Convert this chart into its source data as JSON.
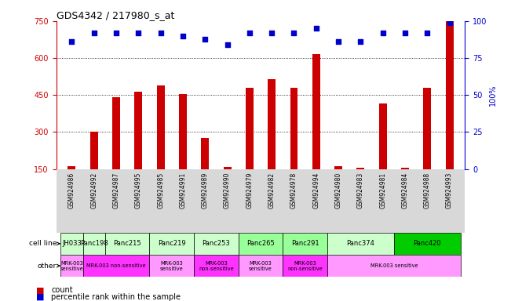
{
  "title": "GDS4342 / 217980_s_at",
  "samples": [
    "GSM924986",
    "GSM924992",
    "GSM924987",
    "GSM924995",
    "GSM924985",
    "GSM924991",
    "GSM924989",
    "GSM924990",
    "GSM924979",
    "GSM924982",
    "GSM924978",
    "GSM924994",
    "GSM924980",
    "GSM924983",
    "GSM924981",
    "GSM924984",
    "GSM924988",
    "GSM924993"
  ],
  "counts": [
    163,
    300,
    440,
    465,
    490,
    455,
    275,
    160,
    480,
    515,
    480,
    615,
    162,
    155,
    415,
    155,
    480,
    750
  ],
  "percentile_values": [
    86,
    92,
    92,
    92,
    92,
    90,
    88,
    84,
    92,
    92,
    92,
    95,
    86,
    86,
    92,
    92,
    92,
    99
  ],
  "cell_lines": [
    {
      "name": "JH033",
      "start": 0,
      "end": 1,
      "color": "#ccffcc"
    },
    {
      "name": "Panc198",
      "start": 1,
      "end": 2,
      "color": "#ccffcc"
    },
    {
      "name": "Panc215",
      "start": 2,
      "end": 4,
      "color": "#ccffcc"
    },
    {
      "name": "Panc219",
      "start": 4,
      "end": 6,
      "color": "#ccffcc"
    },
    {
      "name": "Panc253",
      "start": 6,
      "end": 8,
      "color": "#ccffcc"
    },
    {
      "name": "Panc265",
      "start": 8,
      "end": 10,
      "color": "#99ff99"
    },
    {
      "name": "Panc291",
      "start": 10,
      "end": 12,
      "color": "#99ff99"
    },
    {
      "name": "Panc374",
      "start": 12,
      "end": 15,
      "color": "#ccffcc"
    },
    {
      "name": "Panc420",
      "start": 15,
      "end": 18,
      "color": "#00cc00"
    }
  ],
  "other_groups": [
    {
      "label": "MRK-003\nsensitive",
      "start": 0,
      "end": 1,
      "color": "#ff99ff"
    },
    {
      "label": "MRK-003 non-sensitive",
      "start": 1,
      "end": 4,
      "color": "#ff33ff"
    },
    {
      "label": "MRK-003\nsensitive",
      "start": 4,
      "end": 6,
      "color": "#ff99ff"
    },
    {
      "label": "MRK-003\nnon-sensitive",
      "start": 6,
      "end": 8,
      "color": "#ff33ff"
    },
    {
      "label": "MRK-003\nsensitive",
      "start": 8,
      "end": 10,
      "color": "#ff99ff"
    },
    {
      "label": "MRK-003\nnon-sensitive",
      "start": 10,
      "end": 12,
      "color": "#ff33ff"
    },
    {
      "label": "MRK-003 sensitive",
      "start": 12,
      "end": 18,
      "color": "#ff99ff"
    }
  ],
  "bar_color": "#cc0000",
  "dot_color": "#0000cc",
  "ylim_left": [
    150,
    750
  ],
  "ylim_right": [
    0,
    100
  ],
  "yticks_left": [
    150,
    300,
    450,
    600,
    750
  ],
  "yticks_right": [
    0,
    25,
    50,
    75,
    100
  ],
  "bar_width": 0.35,
  "chart_bg": "#ffffff",
  "tick_label_bg": "#d8d8d8"
}
